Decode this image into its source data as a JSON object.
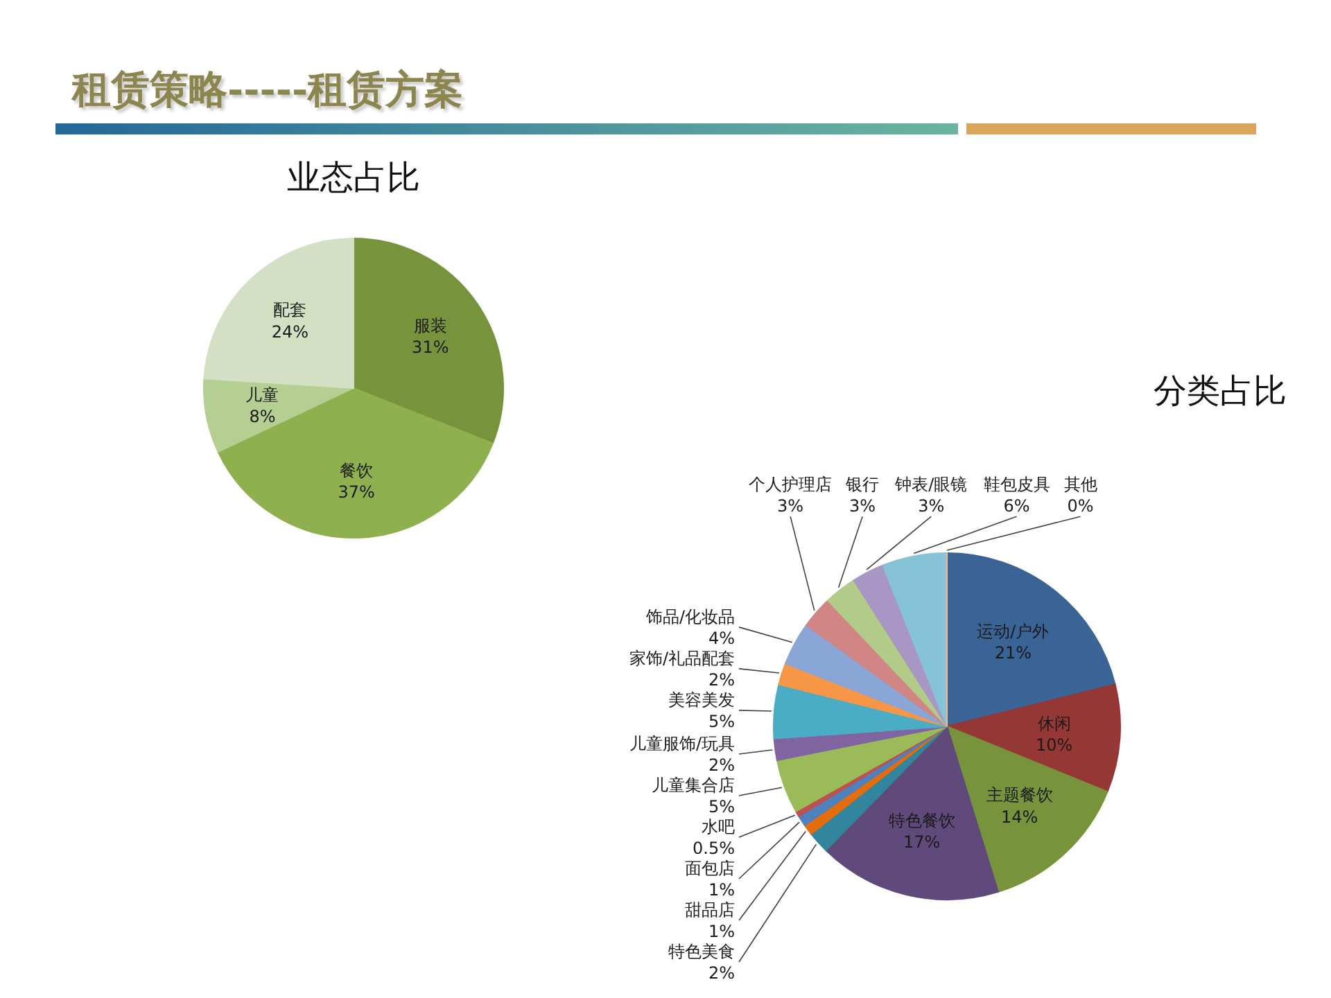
{
  "chart_data": [
    {
      "type": "pie",
      "title": "业态占比",
      "annotations": [
        "租赁策略-----租赁方案"
      ],
      "categories": [
        "服装",
        "餐饮",
        "儿童",
        "配套"
      ],
      "values": [
        31,
        37,
        8,
        24
      ],
      "value_labels": [
        "31%",
        "37%",
        "8%",
        "24%"
      ],
      "colors": [
        "#77933c",
        "#8fb04f",
        "#b5cf92",
        "#d4e0c3"
      ]
    },
    {
      "type": "pie",
      "title": "分类占比",
      "categories": [
        "运动/户外",
        "休闲",
        "主题餐饮",
        "特色餐饮",
        "特色美食",
        "甜品店",
        "面包店",
        "水吧",
        "儿童集合店",
        "儿童服饰/玩具",
        "美容美发",
        "家饰/礼品配套",
        "饰品/化妆品",
        "个人护理店",
        "银行",
        "钟表/眼镜",
        "鞋包皮具",
        "其他"
      ],
      "values": [
        21,
        10,
        14,
        17,
        2,
        1,
        1,
        0.5,
        5,
        2,
        5,
        2,
        4,
        3,
        3,
        3,
        6,
        0
      ],
      "value_labels": [
        "21%",
        "10%",
        "14%",
        "17%",
        "2%",
        "1%",
        "1%",
        "0.5%",
        "5%",
        "2%",
        "5%",
        "2%",
        "4%",
        "3%",
        "3%",
        "3%",
        "6%",
        "0%"
      ],
      "colors": [
        "#3a6496",
        "#953735",
        "#77933c",
        "#604a7b",
        "#31859c",
        "#e46c0a",
        "#4f81bd",
        "#c0504d",
        "#9bbb59",
        "#8064a2",
        "#4bacc6",
        "#f79646",
        "#89a6d6",
        "#cf8684",
        "#b3cb88",
        "#a897c4",
        "#86c3d6",
        "#f9b987"
      ]
    }
  ]
}
